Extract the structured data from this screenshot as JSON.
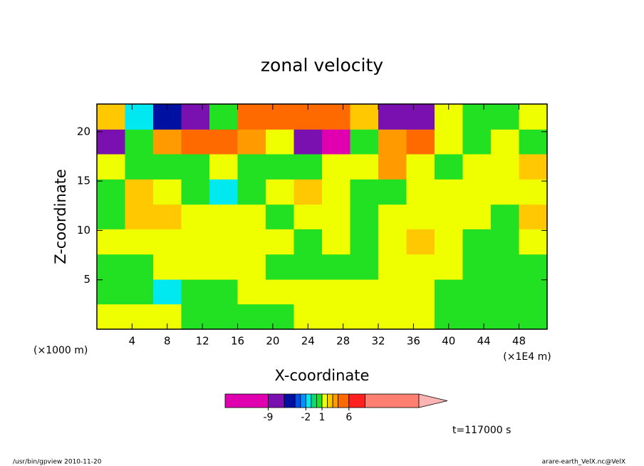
{
  "chart_data": {
    "type": "contourf",
    "title": "zonal velocity",
    "xlabel": "X-coordinate",
    "ylabel": "Z-coordinate",
    "x_unit": "(×1E4 m)",
    "y_unit": "(×1000 m)",
    "xlim": [
      0,
      51.2
    ],
    "ylim": [
      0,
      22.8
    ],
    "xticks": [
      4,
      8,
      12,
      16,
      20,
      24,
      28,
      32,
      36,
      40,
      44,
      48
    ],
    "yticks": [
      5,
      10,
      15,
      20
    ],
    "x": [
      1.6,
      4.8,
      8,
      11.2,
      14.4,
      17.6,
      20.8,
      24,
      27.2,
      30.4,
      33.6,
      36.8,
      40,
      43.2,
      46.4,
      49.6
    ],
    "y": [
      1.3,
      3.8,
      6.3,
      8.9,
      11.4,
      13.9,
      16.5,
      19,
      21.5
    ],
    "z": [
      [
        1.5,
        1.5,
        1.5,
        0.5,
        0.5,
        0.5,
        0.5,
        1.5,
        1.5,
        1.5,
        1.5,
        1.5,
        0.5,
        0.5,
        0.5,
        0.5
      ],
      [
        0.5,
        0.5,
        -1.5,
        0.5,
        0.5,
        1.5,
        1.5,
        1.5,
        1.5,
        1.5,
        1.5,
        1.5,
        0.5,
        0.5,
        0.5,
        0.5
      ],
      [
        0.5,
        0.5,
        1.5,
        1.5,
        1.5,
        1.5,
        0.5,
        0.5,
        0.5,
        0.5,
        1.5,
        1.5,
        1.5,
        0.5,
        0.5,
        0.5
      ],
      [
        1.5,
        1.5,
        1.5,
        1.5,
        1.5,
        1.5,
        1.5,
        0.5,
        1.5,
        0.5,
        1.5,
        2.5,
        1.5,
        0.5,
        0.5,
        1.5
      ],
      [
        0.5,
        2.5,
        2.5,
        1.5,
        1.5,
        1.5,
        0.5,
        1.5,
        1.5,
        0.5,
        1.5,
        1.5,
        1.5,
        1.5,
        0.5,
        2.5
      ],
      [
        0.5,
        2.5,
        1.5,
        0.5,
        -1.5,
        0.5,
        1.5,
        2.5,
        1.5,
        0.5,
        0.5,
        1.5,
        1.5,
        1.5,
        1.5,
        1.5
      ],
      [
        1.5,
        0.5,
        0.5,
        0.5,
        1.5,
        0.5,
        0.5,
        0.5,
        1.5,
        1.5,
        3.5,
        1.5,
        0.5,
        1.5,
        1.5,
        2.5
      ],
      [
        -7,
        0.5,
        3.5,
        5,
        5,
        3.5,
        1.5,
        -7,
        -9.5,
        0.5,
        3.5,
        5,
        1.5,
        0.5,
        1.5,
        0.5
      ],
      [
        2.5,
        -1.5,
        -5,
        -7,
        0.5,
        5,
        5,
        5,
        5,
        2.5,
        -7,
        -7,
        1.5,
        0.5,
        0.5,
        1.5
      ]
    ],
    "colorbar": {
      "lim": [
        -17,
        19
      ],
      "levels": [
        -17,
        -9,
        -6,
        -4,
        -3,
        -2,
        -1,
        0,
        1,
        2,
        3,
        4,
        6,
        9,
        19
      ],
      "colors": [
        "#e000b0",
        "#7a10b0",
        "#0010a0",
        "#0050f0",
        "#0090ff",
        "#00e8f0",
        "#10d870",
        "#22e022",
        "#f0ff00",
        "#ffc800",
        "#ff9a00",
        "#ff6a00",
        "#ff2020",
        "#ff8070"
      ],
      "over_color": "#ffb4b4",
      "ticks": [
        -9,
        -2,
        1,
        6
      ]
    },
    "time_label": "t=117000 s",
    "footer_left": "/usr/bin/gpview  2010-11-20",
    "footer_right": "arare-earth_VelX.nc@VelX"
  }
}
